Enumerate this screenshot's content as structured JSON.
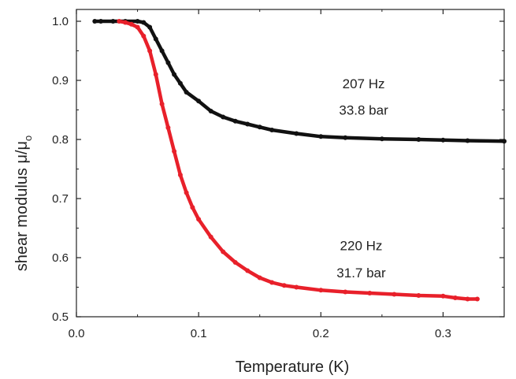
{
  "chart_data": {
    "type": "scatter",
    "xlabel": "Temperature (K)",
    "ylabel_main": "shear modulus μ/μ",
    "ylabel_sub": "o",
    "xlim": [
      0.0,
      0.35
    ],
    "ylim": [
      0.5,
      1.02
    ],
    "xticks": [
      "0.0",
      "0.1",
      "0.2",
      "0.3"
    ],
    "yticks": [
      "0.5",
      "0.6",
      "0.7",
      "0.8",
      "0.9",
      "1.0"
    ],
    "grid": false,
    "series": [
      {
        "color": "#111111",
        "x": [
          0.015,
          0.02,
          0.03,
          0.04,
          0.05,
          0.055,
          0.06,
          0.065,
          0.07,
          0.075,
          0.08,
          0.085,
          0.09,
          0.1,
          0.11,
          0.12,
          0.13,
          0.14,
          0.15,
          0.16,
          0.18,
          0.2,
          0.22,
          0.25,
          0.28,
          0.3,
          0.32,
          0.35
        ],
        "values": [
          1.0,
          1.0,
          1.0,
          1.0,
          1.0,
          0.998,
          0.99,
          0.97,
          0.95,
          0.93,
          0.91,
          0.895,
          0.88,
          0.865,
          0.848,
          0.838,
          0.831,
          0.826,
          0.821,
          0.816,
          0.81,
          0.805,
          0.803,
          0.801,
          0.8,
          0.799,
          0.798,
          0.797
        ]
      },
      {
        "color": "#e8202a",
        "x": [
          0.035,
          0.04,
          0.045,
          0.05,
          0.055,
          0.06,
          0.065,
          0.07,
          0.075,
          0.08,
          0.085,
          0.09,
          0.095,
          0.1,
          0.11,
          0.12,
          0.13,
          0.14,
          0.15,
          0.16,
          0.17,
          0.18,
          0.2,
          0.22,
          0.24,
          0.26,
          0.28,
          0.3,
          0.31,
          0.32,
          0.328
        ],
        "values": [
          1.0,
          0.998,
          0.995,
          0.99,
          0.975,
          0.95,
          0.91,
          0.86,
          0.82,
          0.78,
          0.74,
          0.71,
          0.685,
          0.665,
          0.635,
          0.61,
          0.592,
          0.578,
          0.566,
          0.558,
          0.553,
          0.55,
          0.545,
          0.542,
          0.54,
          0.538,
          0.536,
          0.535,
          0.532,
          0.53,
          0.53
        ]
      }
    ],
    "annotations": [
      {
        "id": "hz-top",
        "text": "207 Hz",
        "x": 0.235,
        "y": 0.887
      },
      {
        "id": "bar-top",
        "text": "33.8 bar",
        "x": 0.235,
        "y": 0.842
      },
      {
        "id": "hz-bottom",
        "text": "220 Hz",
        "x": 0.233,
        "y": 0.613
      },
      {
        "id": "bar-bottom",
        "text": "31.7 bar",
        "x": 0.233,
        "y": 0.567
      }
    ]
  }
}
